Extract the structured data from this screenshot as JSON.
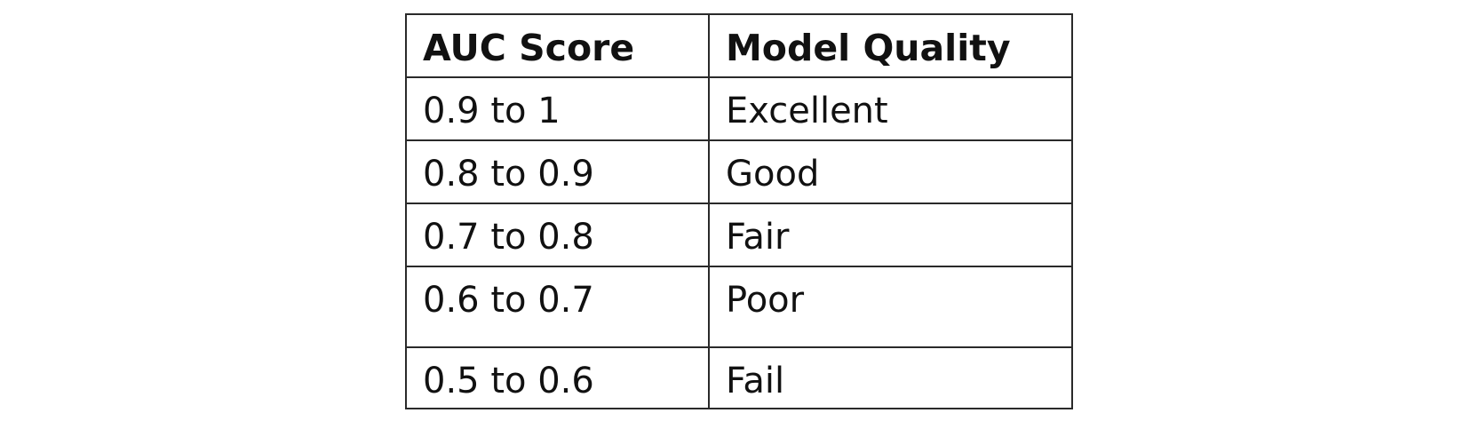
{
  "table": {
    "headers": [
      "AUC Score",
      "Model Quality"
    ],
    "rows": [
      [
        "0.9 to 1",
        "Excellent"
      ],
      [
        "0.8 to 0.9",
        "Good"
      ],
      [
        "0.7 to 0.8",
        "Fair"
      ],
      [
        "0.6 to 0.7",
        "Poor"
      ],
      [
        "0.5 to 0.6",
        "Fail"
      ]
    ]
  }
}
